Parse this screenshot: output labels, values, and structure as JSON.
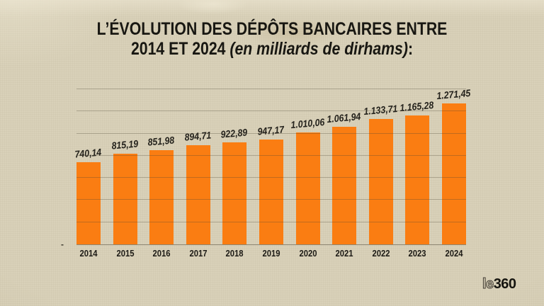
{
  "title": {
    "line1": "L’ÉVOLUTION DES DÉPÔTS BANCAIRES ENTRE",
    "line2_bold": "2014 ET 2024",
    "line2_italic": "(en milliards de dirhams)",
    "line2_suffix": ":"
  },
  "chart_data": {
    "type": "bar",
    "title": "L'évolution des dépôts bancaires entre 2014 et 2024 (en milliards de dirhams)",
    "unit": "milliards de dirhams",
    "categories": [
      "2014",
      "2015",
      "2016",
      "2017",
      "2018",
      "2019",
      "2020",
      "2021",
      "2022",
      "2023",
      "2024"
    ],
    "values": [
      740.14,
      815.19,
      851.98,
      894.71,
      922.89,
      947.17,
      1010.06,
      1061.94,
      1133.71,
      1165.28,
      1271.45
    ],
    "value_labels": [
      "740,14",
      "815,19",
      "851,98",
      "894,71",
      "922,89",
      "947,17",
      "1.010,06",
      "1.061,94",
      "1.133,71",
      "1.165,28",
      "1.271,45"
    ],
    "ylim": [
      0,
      1400
    ],
    "grid_step": 200,
    "grid": true,
    "legend": false,
    "xlabel": "",
    "ylabel": "",
    "baseline_label": "-"
  },
  "logo": {
    "prefix": "le",
    "suffix": "360"
  },
  "colors": {
    "bar": "#fa7d12",
    "background": "#d9d1b9",
    "gridline": "#a9a18b",
    "text": "#1b1a15"
  }
}
